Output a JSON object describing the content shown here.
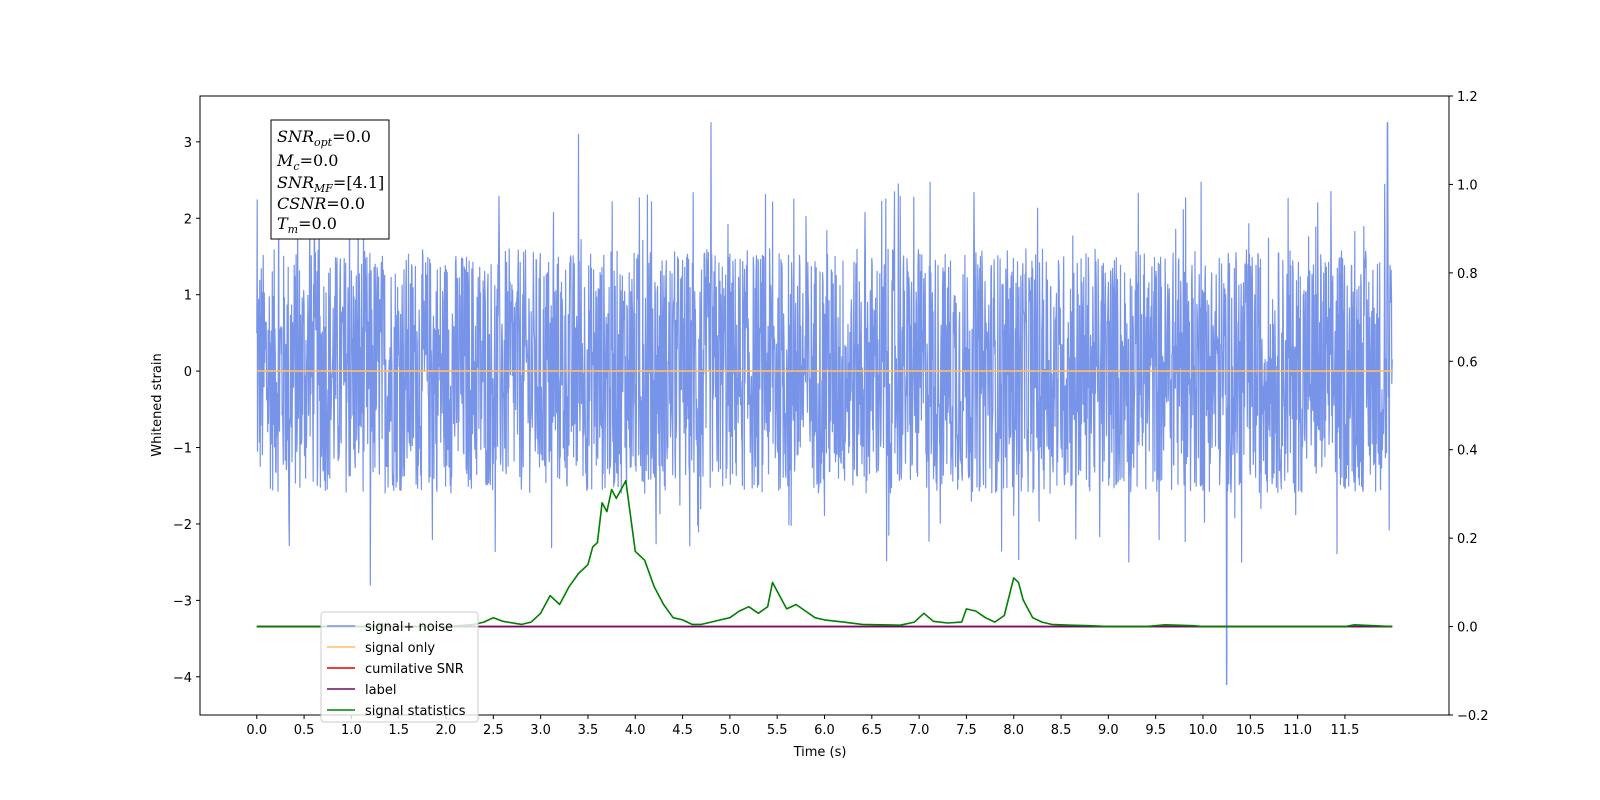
{
  "chart_data": {
    "type": "line",
    "xlabel": "Time (s)",
    "ylabel": "Whitened strain",
    "xlim": [
      -0.6,
      12.6
    ],
    "ylim": [
      -4.5,
      3.6
    ],
    "y2lim": [
      -0.2,
      1.2
    ],
    "x_ticks": [
      "0.0",
      "0.5",
      "1.0",
      "1.5",
      "2.0",
      "2.5",
      "3.0",
      "3.5",
      "4.0",
      "4.5",
      "5.0",
      "5.5",
      "6.0",
      "6.5",
      "7.0",
      "7.5",
      "8.0",
      "8.5",
      "9.0",
      "9.5",
      "10.0",
      "10.5",
      "11.0",
      "11.5"
    ],
    "y_ticks": [
      "3",
      "2",
      "1",
      "0",
      "−1",
      "−2",
      "−3",
      "−4"
    ],
    "y2_ticks": [
      "1.2",
      "1.0",
      "0.8",
      "0.6",
      "0.4",
      "0.2",
      "0.0",
      "−0.2"
    ],
    "info_box": {
      "snr_opt": {
        "base": "SNR",
        "sub": "opt",
        "value": "=0.0"
      },
      "mc": {
        "base": "M",
        "sub": "c",
        "value": "=0.0"
      },
      "snr_mf": {
        "base": "SNR",
        "sub": "MF",
        "value": "=[4.1]"
      },
      "csnr": {
        "base": "CSNR",
        "sub": "",
        "value": "=0.0"
      },
      "tm": {
        "base": "T",
        "sub": "m",
        "value": "=0.0"
      }
    },
    "legend_placement": "lower-left",
    "series": [
      {
        "name": "signal+ noise",
        "color": "#7894e8",
        "axis": "left",
        "x_range": [
          0.0,
          12.0
        ],
        "y_range": [
          -4.1,
          3.25
        ],
        "notable_peaks": [
          [
            1.2,
            -2.8
          ],
          [
            3.4,
            3.1
          ],
          [
            4.8,
            3.25
          ],
          [
            10.25,
            -4.1
          ],
          [
            11.95,
            3.25
          ]
        ]
      },
      {
        "name": "signal only",
        "color": "#ffbf60",
        "axis": "left",
        "x": [
          0.0,
          12.0
        ],
        "y": [
          0.0,
          0.0
        ]
      },
      {
        "name": "cumilative SNR",
        "color": "#e00000",
        "axis": "right",
        "x": [
          0.0,
          12.0
        ],
        "y": [
          0.0,
          0.0
        ]
      },
      {
        "name": "label",
        "color": "#6a0a6a",
        "axis": "right",
        "x": [
          0.0,
          12.0
        ],
        "y": [
          0.0,
          0.0
        ]
      },
      {
        "name": "signal statistics",
        "color": "#008000",
        "axis": "right",
        "x": [
          0.0,
          1.0,
          2.0,
          2.3,
          2.4,
          2.5,
          2.6,
          2.8,
          2.9,
          3.0,
          3.1,
          3.2,
          3.3,
          3.4,
          3.5,
          3.55,
          3.6,
          3.65,
          3.7,
          3.75,
          3.8,
          3.85,
          3.9,
          4.0,
          4.1,
          4.2,
          4.3,
          4.4,
          4.5,
          4.6,
          4.7,
          4.8,
          4.9,
          5.0,
          5.1,
          5.2,
          5.3,
          5.4,
          5.45,
          5.5,
          5.6,
          5.7,
          5.8,
          5.9,
          6.0,
          6.2,
          6.4,
          6.6,
          6.8,
          6.95,
          7.05,
          7.15,
          7.3,
          7.45,
          7.5,
          7.6,
          7.7,
          7.8,
          7.9,
          8.0,
          8.05,
          8.1,
          8.2,
          8.3,
          8.4,
          8.6,
          8.8,
          9.0,
          9.4,
          9.6,
          9.9,
          10.0,
          11.0,
          11.5,
          11.6,
          12.0
        ],
        "y": [
          0.0,
          0.0,
          0.0,
          0.005,
          0.01,
          0.02,
          0.012,
          0.005,
          0.01,
          0.03,
          0.07,
          0.05,
          0.09,
          0.12,
          0.14,
          0.18,
          0.19,
          0.28,
          0.26,
          0.31,
          0.29,
          0.31,
          0.33,
          0.17,
          0.15,
          0.09,
          0.05,
          0.02,
          0.015,
          0.005,
          0.005,
          0.01,
          0.015,
          0.02,
          0.035,
          0.045,
          0.03,
          0.045,
          0.1,
          0.08,
          0.04,
          0.05,
          0.035,
          0.02,
          0.015,
          0.01,
          0.005,
          0.004,
          0.003,
          0.01,
          0.03,
          0.012,
          0.008,
          0.01,
          0.04,
          0.035,
          0.02,
          0.01,
          0.025,
          0.11,
          0.1,
          0.06,
          0.02,
          0.01,
          0.005,
          0.003,
          0.002,
          0.0,
          0.0,
          0.004,
          0.002,
          0.0,
          0.0,
          0.0,
          0.004,
          0.0
        ]
      }
    ]
  }
}
